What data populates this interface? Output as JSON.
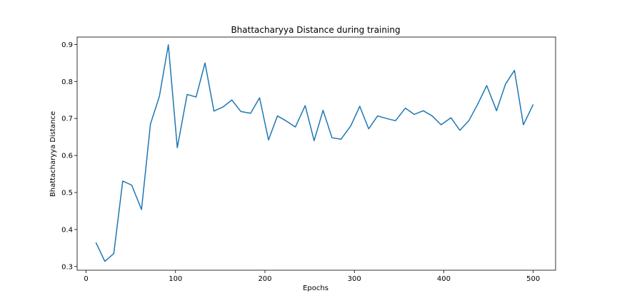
{
  "chart_data": {
    "type": "line",
    "title": "Bhattacharyya Distance during training",
    "xlabel": "Epochs",
    "ylabel": "Bhattacharyya Distance",
    "xlim": [
      -10,
      525
    ],
    "ylim": [
      0.29,
      0.92
    ],
    "xticks": [
      0,
      100,
      200,
      300,
      400,
      500
    ],
    "xtick_labels": [
      "0",
      "100",
      "200",
      "300",
      "400",
      "500"
    ],
    "yticks": [
      0.3,
      0.4,
      0.5,
      0.6,
      0.7,
      0.8,
      0.9
    ],
    "ytick_labels": [
      "0.3",
      "0.4",
      "0.5",
      "0.6",
      "0.7",
      "0.8",
      "0.9"
    ],
    "grid": false,
    "series": [
      {
        "color": "#1f77b4",
        "x": [
          11,
          21,
          31,
          41,
          51,
          62,
          72,
          82,
          92,
          102,
          113,
          123,
          133,
          143,
          153,
          163,
          173,
          184,
          194,
          204,
          214,
          224,
          234,
          245,
          255,
          265,
          275,
          285,
          296,
          306,
          316,
          326,
          336,
          346,
          357,
          367,
          377,
          387,
          397,
          408,
          418,
          428,
          438,
          448,
          459,
          469,
          479,
          489,
          500
        ],
        "y": [
          0.365,
          0.314,
          0.335,
          0.531,
          0.52,
          0.454,
          0.685,
          0.76,
          0.899,
          0.621,
          0.765,
          0.758,
          0.85,
          0.72,
          0.731,
          0.75,
          0.719,
          0.714,
          0.756,
          0.642,
          0.707,
          0.693,
          0.677,
          0.735,
          0.64,
          0.722,
          0.648,
          0.644,
          0.68,
          0.733,
          0.672,
          0.707,
          0.7,
          0.694,
          0.728,
          0.711,
          0.721,
          0.707,
          0.683,
          0.702,
          0.668,
          0.694,
          0.739,
          0.789,
          0.721,
          0.793,
          0.83,
          0.683,
          0.738
        ]
      }
    ]
  }
}
